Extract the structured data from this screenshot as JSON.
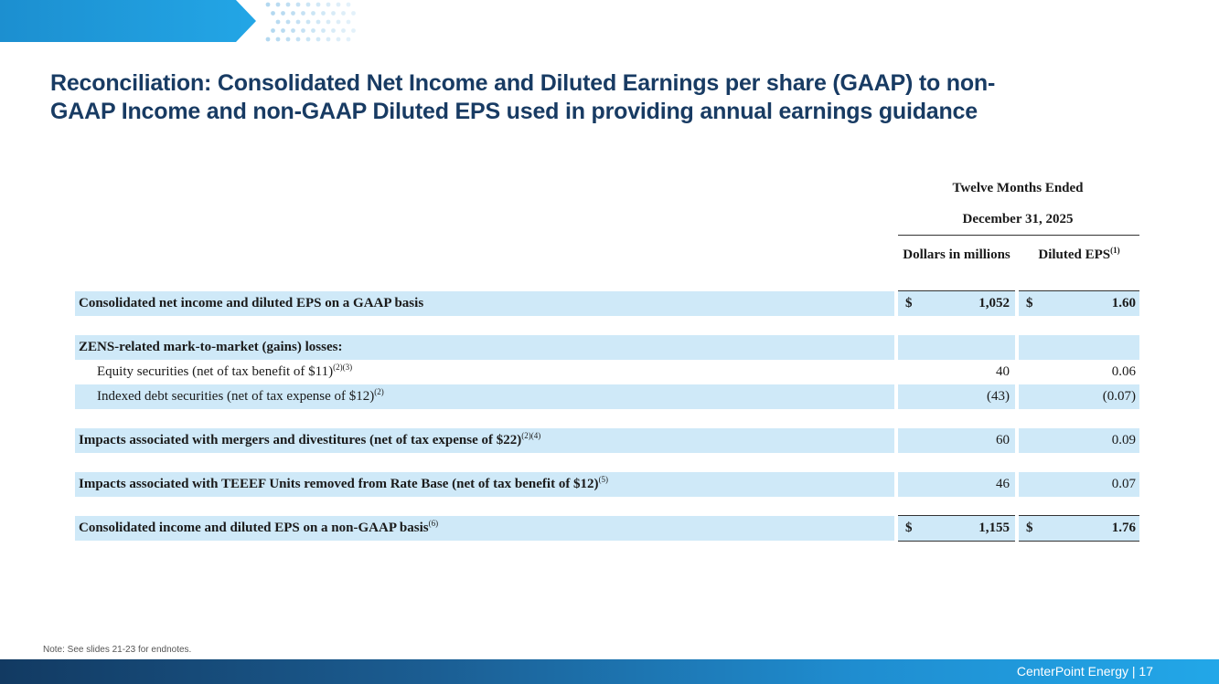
{
  "title": "Reconciliation: Consolidated Net Income and Diluted Earnings per share (GAAP) to non-GAAP Income and non-GAAP Diluted EPS used in providing annual earnings guidance",
  "table": {
    "period_header": "Twelve Months Ended",
    "period_date": "December 31, 2025",
    "col1_header": "Dollars in millions",
    "col2_header": "Diluted EPS",
    "col2_header_note": "(1)",
    "rows": [
      {
        "label": "Consolidated net income and diluted EPS on a GAAP basis",
        "note": "",
        "currency1": "$",
        "value1": "1,052",
        "currency2": "$",
        "value2": "1.60"
      },
      {
        "label": "ZENS-related mark-to-market (gains) losses:",
        "note": "",
        "currency1": "",
        "value1": "",
        "currency2": "",
        "value2": ""
      },
      {
        "label": "Equity securities (net of tax benefit of $11)",
        "note": "(2)(3)",
        "currency1": "",
        "value1": "40",
        "currency2": "",
        "value2": "0.06"
      },
      {
        "label": "Indexed debt securities (net of tax expense of $12)",
        "note": "(2)",
        "currency1": "",
        "value1": "(43)",
        "currency2": "",
        "value2": "(0.07)"
      },
      {
        "label": "Impacts associated with mergers and divestitures (net of tax expense of $22)",
        "note": "(2)(4)",
        "currency1": "",
        "value1": "60",
        "currency2": "",
        "value2": "0.09"
      },
      {
        "label": "Impacts associated with TEEEF Units removed from Rate Base (net of tax benefit of $12)",
        "note": "(5)",
        "currency1": "",
        "value1": "46",
        "currency2": "",
        "value2": "0.07"
      },
      {
        "label": "Consolidated income and diluted EPS on a non-GAAP basis",
        "note": "(6)",
        "currency1": "$",
        "value1": "1,155",
        "currency2": "$",
        "value2": "1.76"
      }
    ]
  },
  "note": "Note: See slides 21-23 for endnotes.",
  "footer": "CenterPoint Energy | 17",
  "colors": {
    "title": "#183b63",
    "row_shade": "#cfe9f8",
    "banner": "#1f9ad6"
  }
}
